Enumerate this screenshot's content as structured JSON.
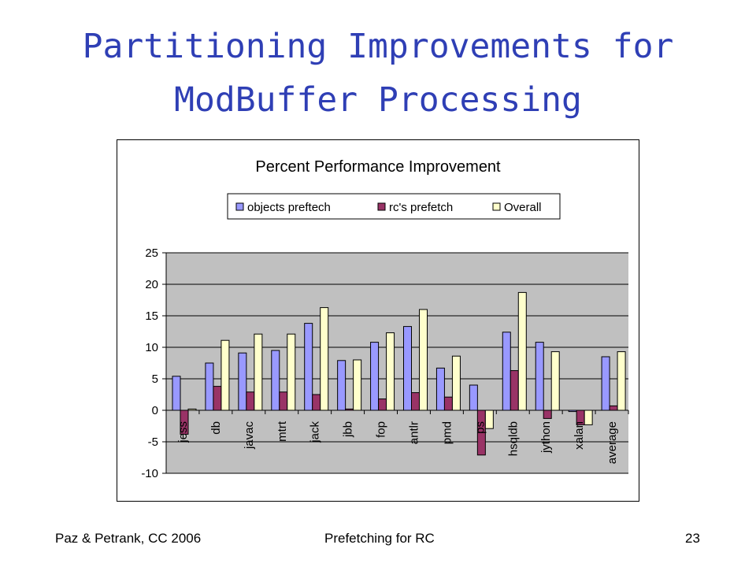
{
  "slide": {
    "title_line1": "Partitioning Improvements for",
    "title_line2": "ModBuffer Processing",
    "footer_left": "Paz & Petrank, CC 2006",
    "footer_center": "Prefetching for RC",
    "page_number": "23"
  },
  "chart_data": {
    "type": "bar",
    "title": "Percent Performance Improvement",
    "xlabel": "",
    "ylabel": "",
    "ylim": [
      -10,
      25
    ],
    "yticks": [
      -10,
      -5,
      0,
      5,
      10,
      15,
      20,
      25
    ],
    "grid": true,
    "legend_position": "top",
    "categories": [
      "jess",
      "db",
      "javac",
      "mtrt",
      "jack",
      "jbb",
      "fop",
      "antlr",
      "pmd",
      "ps",
      "hsqldb",
      "jython",
      "xalan",
      "average"
    ],
    "series": [
      {
        "name": "objects preftech",
        "color": "#9999ff",
        "values": [
          5.4,
          7.5,
          9.1,
          9.5,
          13.8,
          7.9,
          10.8,
          13.3,
          6.7,
          4.0,
          12.4,
          10.8,
          -0.2,
          8.5
        ]
      },
      {
        "name": "rc's prefetch",
        "color": "#993366",
        "values": [
          -3.8,
          3.8,
          2.9,
          2.9,
          2.5,
          0.2,
          1.8,
          2.8,
          2.1,
          -7.1,
          6.3,
          -1.3,
          -2.3,
          0.7
        ]
      },
      {
        "name": "Overall",
        "color": "#ffffcc",
        "values": [
          0.2,
          11.1,
          12.1,
          12.1,
          16.3,
          8.0,
          12.3,
          16.0,
          8.6,
          -2.9,
          18.7,
          9.3,
          -2.3,
          9.3
        ]
      }
    ],
    "plot_background": "#c0c0c0"
  }
}
